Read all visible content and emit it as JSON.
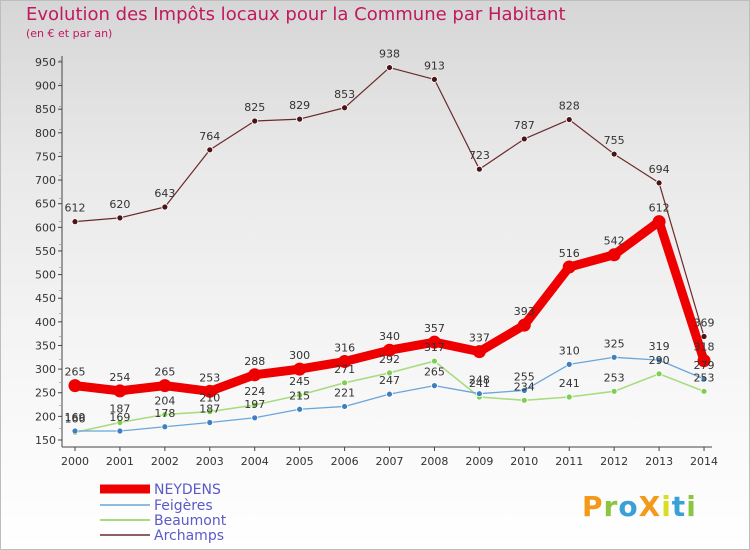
{
  "chart_data": {
    "type": "line",
    "title": "Evolution des Impôts locaux pour la Commune par Habitant",
    "subtitle": "(en € et par an)",
    "xlabel": "",
    "ylabel": "",
    "categories": [
      "2000",
      "2001",
      "2002",
      "2003",
      "2004",
      "2005",
      "2006",
      "2007",
      "2008",
      "2009",
      "2010",
      "2011",
      "2012",
      "2013",
      "2014"
    ],
    "ylim": [
      150,
      950
    ],
    "yticks": [
      150,
      200,
      250,
      300,
      350,
      400,
      450,
      500,
      550,
      600,
      650,
      700,
      750,
      800,
      850,
      900,
      950
    ],
    "grid": false,
    "legend_position": "bottom-left",
    "series": [
      {
        "name": "NEYDENS",
        "color": "#ee0000",
        "values": [
          265,
          254,
          265,
          253,
          288,
          300,
          316,
          340,
          357,
          337,
          393,
          516,
          542,
          612,
          318
        ]
      },
      {
        "name": "Feigères",
        "color": "#6aa6d8",
        "values": [
          169,
          169,
          178,
          187,
          197,
          215,
          221,
          247,
          265,
          248,
          255,
          310,
          325,
          319,
          279
        ]
      },
      {
        "name": "Beaumont",
        "color": "#a8dc80",
        "values": [
          166,
          187,
          204,
          210,
          224,
          245,
          271,
          292,
          317,
          241,
          234,
          241,
          253,
          290,
          253
        ]
      },
      {
        "name": "Archamps",
        "color": "#6b2a2a",
        "values": [
          612,
          620,
          643,
          764,
          825,
          829,
          853,
          938,
          913,
          723,
          787,
          828,
          755,
          694,
          369
        ]
      }
    ]
  },
  "logo": {
    "text": "ProXiti",
    "letters": [
      "P",
      "r",
      "o",
      "X",
      "i",
      "t",
      "i"
    ],
    "colors": [
      "#f39a1a",
      "#8cc63f",
      "#3aa0d8",
      "#f39a1a",
      "#d7df23",
      "#3aa0d8",
      "#8cc63f"
    ]
  }
}
